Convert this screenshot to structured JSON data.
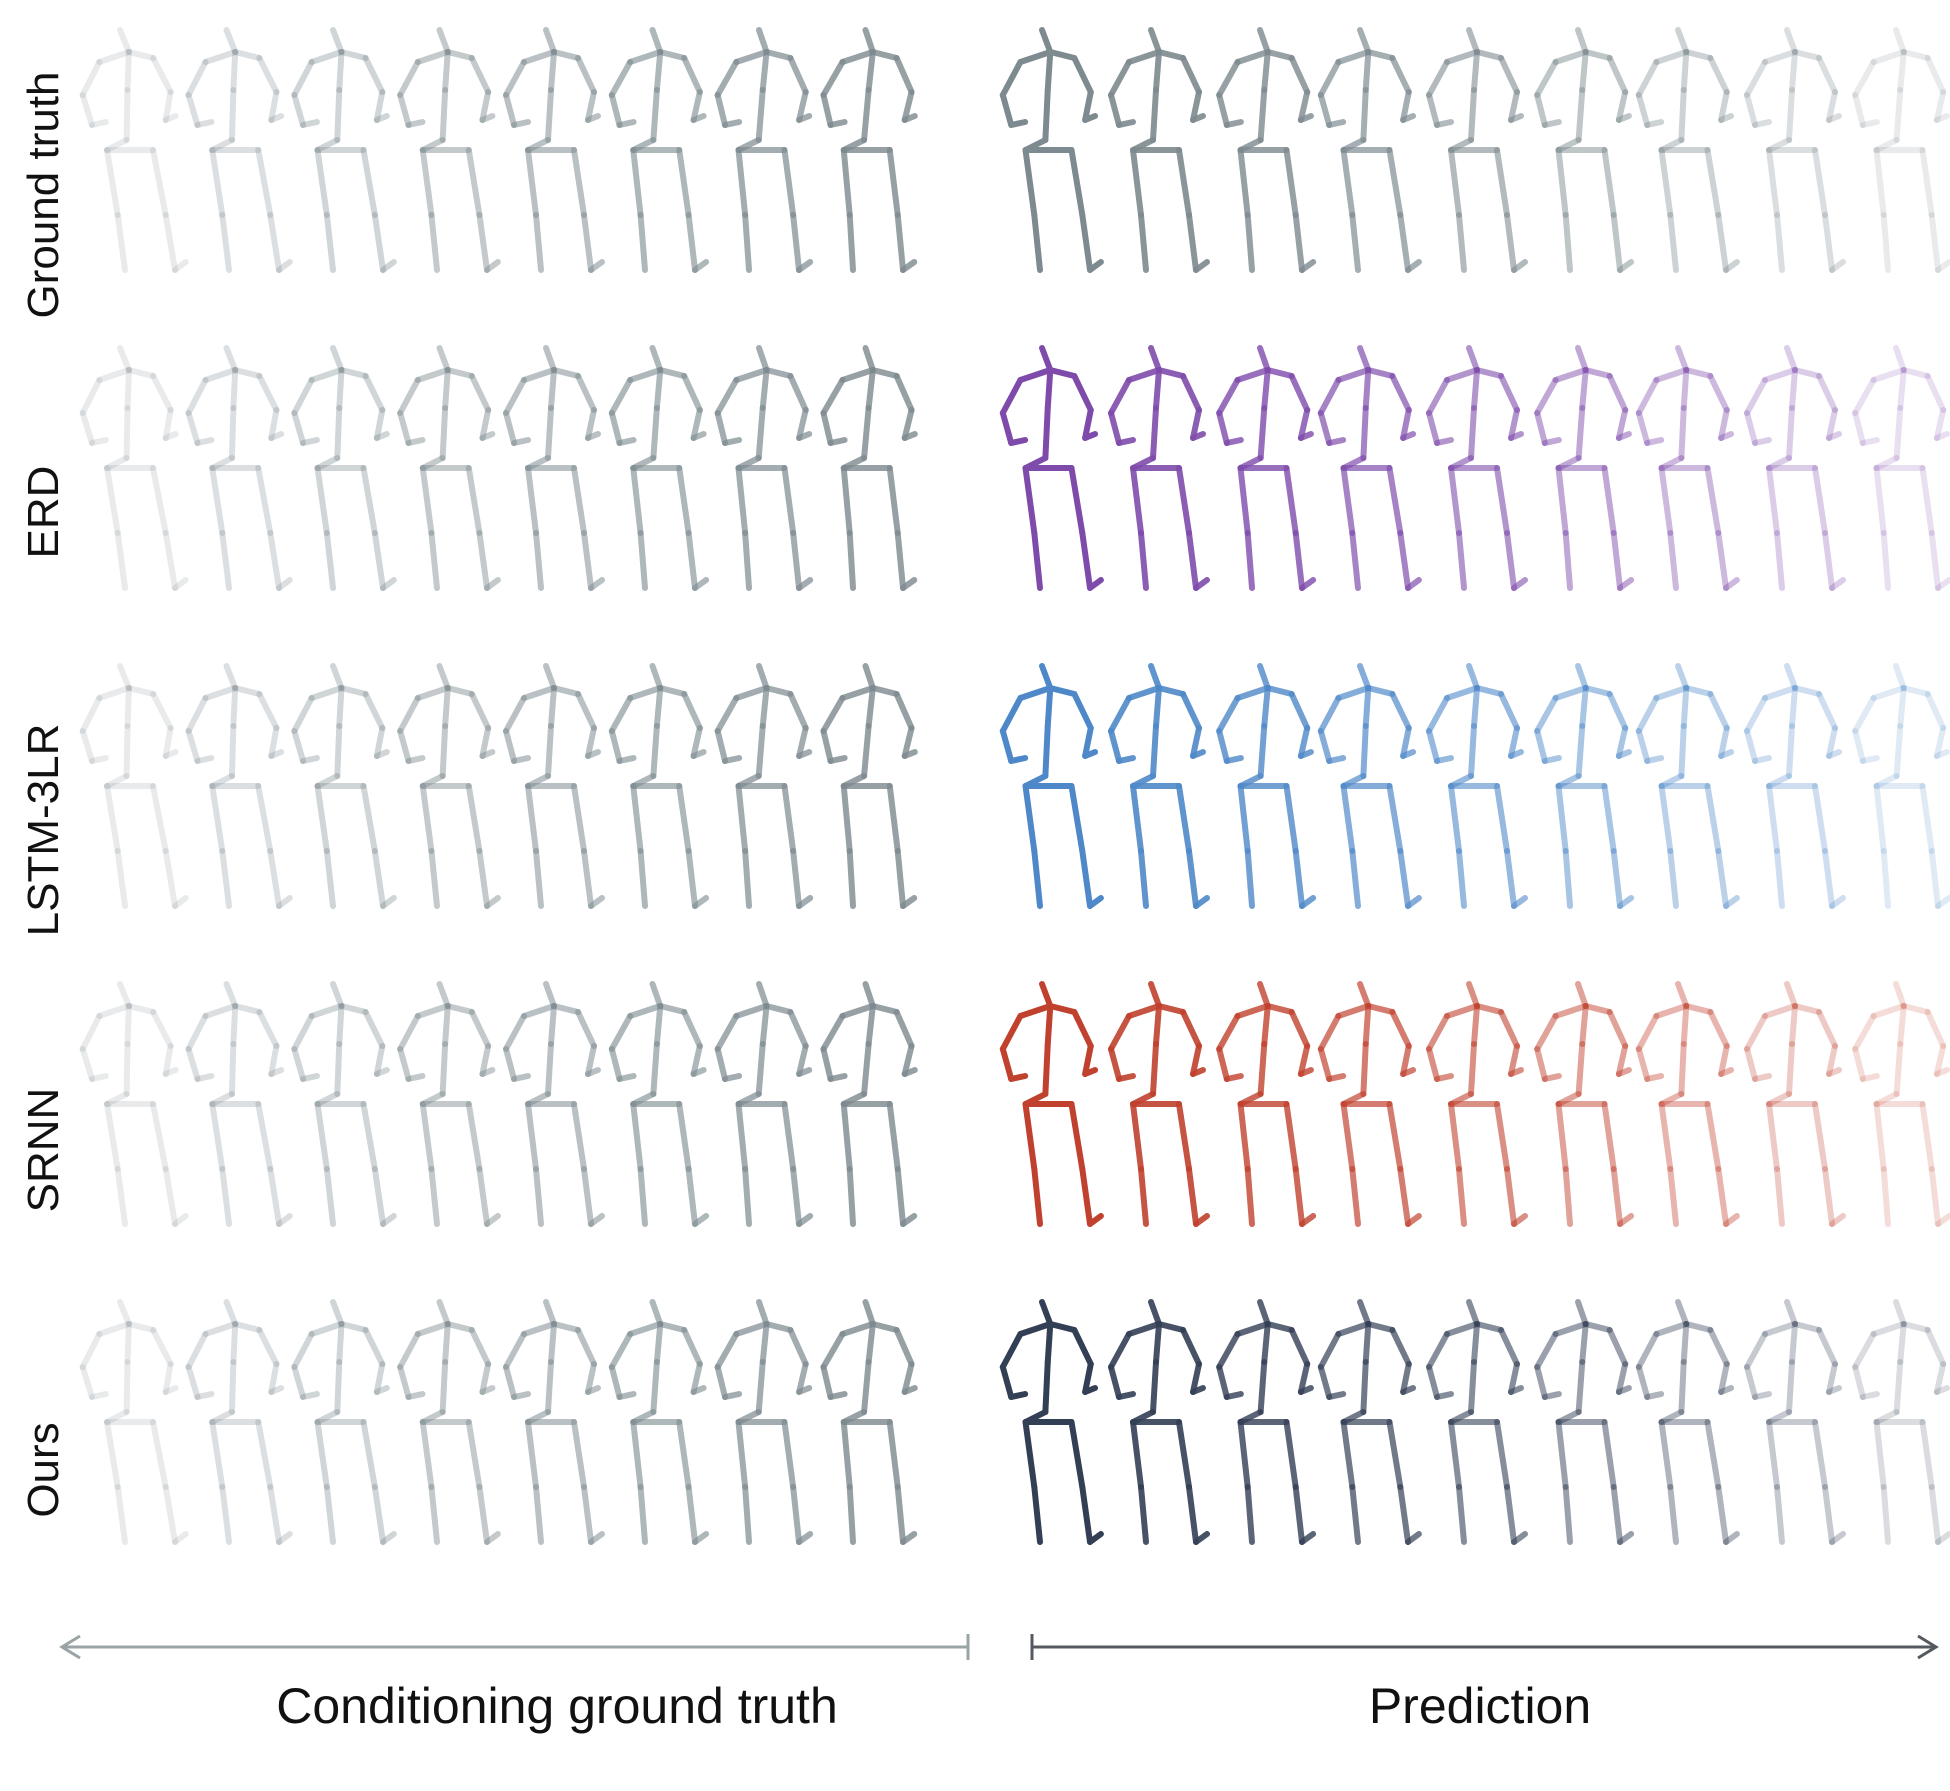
{
  "rows": [
    {
      "label": "Ground truth",
      "pred_color": "#7d8a8f"
    },
    {
      "label": "ERD",
      "pred_color": "#7e4bab"
    },
    {
      "label": "LSTM-3LR",
      "pred_color": "#4f88c8"
    },
    {
      "label": "SRNN",
      "pred_color": "#c0412e"
    },
    {
      "label": "Ours",
      "pred_color": "#333f55"
    }
  ],
  "conditioning_color": "#7d8a8f",
  "conditioning_frames": 8,
  "prediction_frames": 9,
  "axis": {
    "conditioning_label": "Conditioning ground truth",
    "prediction_label": "Prediction",
    "conditioning_arrow_color": "#9aa3a6",
    "prediction_arrow_color": "#555a60"
  }
}
